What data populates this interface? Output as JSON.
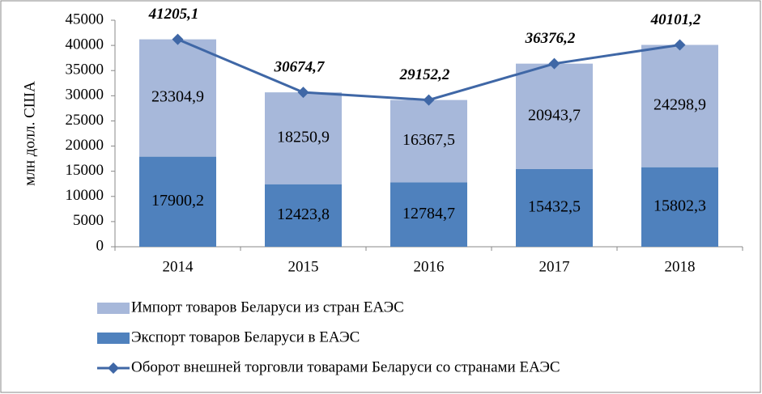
{
  "chart_data": {
    "type": "bar",
    "stacked": true,
    "y_label": "млн долл. США",
    "categories": [
      "2014",
      "2015",
      "2016",
      "2017",
      "2018"
    ],
    "series": [
      {
        "name": "Импорт товаров Беларуси из стран ЕАЭС",
        "type": "bar",
        "color": "#a7b8da",
        "values": [
          23304.9,
          18250.9,
          16367.5,
          20943.7,
          24298.9
        ],
        "value_labels": [
          "23304,9",
          "18250,9",
          "16367,5",
          "20943,7",
          "24298,9"
        ]
      },
      {
        "name": "Экспорт товаров Беларуси в ЕАЭС",
        "type": "bar",
        "color": "#4f81bd",
        "values": [
          17900.2,
          12423.8,
          12784.7,
          15432.5,
          15802.3
        ],
        "value_labels": [
          "17900,2",
          "12423,8",
          "12784,7",
          "15432,5",
          "15802,3"
        ]
      },
      {
        "name": "Оборот внешней торговли товарами Беларуси со странами ЕАЭС",
        "type": "line",
        "color": "#3f67a6",
        "values": [
          41205.1,
          30674.7,
          29152.2,
          36376.2,
          40101.2
        ],
        "value_labels": [
          "41205,1",
          "30674,7",
          "29152,2",
          "36376,2",
          "40101,2"
        ]
      }
    ],
    "ylim": [
      0,
      45000
    ],
    "yticks": [
      0,
      5000,
      10000,
      15000,
      20000,
      25000,
      30000,
      35000,
      40000,
      45000
    ]
  }
}
